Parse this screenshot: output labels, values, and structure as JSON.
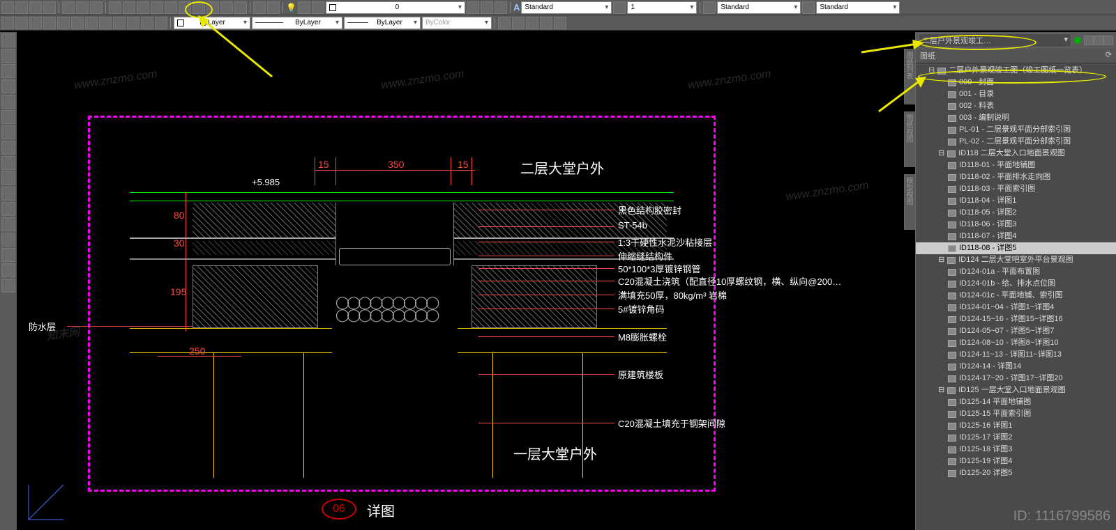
{
  "toolbar1": {
    "layer_dd": "0",
    "style1": "Standard",
    "style2": "1",
    "style3": "Standard",
    "style4": "Standard"
  },
  "toolbar2": {
    "bylayer1": "ByLayer",
    "bylayer2": "ByLayer",
    "bylayer3": "ByLayer",
    "bycolor": "ByColor"
  },
  "right_panel": {
    "header_dd": "二层户外景观竣工…",
    "section": "图纸",
    "root": "二层户外景观竣工图（竣工图纸一览表）",
    "items": [
      {
        "lv": 2,
        "label": "000 - 封面"
      },
      {
        "lv": 2,
        "label": "001 - 目录"
      },
      {
        "lv": 2,
        "label": "002 - 料表"
      },
      {
        "lv": 2,
        "label": "003 - 编制说明"
      },
      {
        "lv": 2,
        "label": "PL-01 - 二层景观平面分部索引图"
      },
      {
        "lv": 2,
        "label": "PL-02 - 二层景观平面分部索引图"
      },
      {
        "lv": 1,
        "label": "ID118 二层大堂入口地面景观图"
      },
      {
        "lv": 2,
        "label": "ID118-01 - 平面地铺图"
      },
      {
        "lv": 2,
        "label": "ID118-02 - 平面排水走向图"
      },
      {
        "lv": 2,
        "label": "ID118-03 - 平面索引图"
      },
      {
        "lv": 2,
        "label": "ID118-04 - 详图1"
      },
      {
        "lv": 2,
        "label": "ID118-05 - 详图2"
      },
      {
        "lv": 2,
        "label": "ID118-06 - 详图3"
      },
      {
        "lv": 2,
        "label": "ID118-07 - 详图4"
      },
      {
        "lv": 2,
        "label": "ID118-08 - 详图5",
        "sel": true
      },
      {
        "lv": 1,
        "label": "ID124 二层大堂吧室外平台景观图"
      },
      {
        "lv": 2,
        "label": "ID124-01a - 平面布置图"
      },
      {
        "lv": 2,
        "label": "ID124-01b - 给、排水点位图"
      },
      {
        "lv": 2,
        "label": "ID124-01c - 平面地铺、索引图"
      },
      {
        "lv": 2,
        "label": "ID124-01~04 - 详图1~详图4"
      },
      {
        "lv": 2,
        "label": "ID124-15~16 - 详图15~详图16"
      },
      {
        "lv": 2,
        "label": "ID124-05~07 - 详图5~详图7"
      },
      {
        "lv": 2,
        "label": "ID124-08~10 - 详图8~详图10"
      },
      {
        "lv": 2,
        "label": "ID124-11~13 - 详图11~详图13"
      },
      {
        "lv": 2,
        "label": "ID124-14 - 详图14"
      },
      {
        "lv": 2,
        "label": "ID124-17~20 - 详图17~详图20"
      },
      {
        "lv": 1,
        "label": "ID125 一层大堂入口地面景观图"
      },
      {
        "lv": 2,
        "label": "ID125-14 平面地铺图"
      },
      {
        "lv": 2,
        "label": "ID125-15 平面索引图"
      },
      {
        "lv": 2,
        "label": "ID125-16 详图1"
      },
      {
        "lv": 2,
        "label": "ID125-17 详图2"
      },
      {
        "lv": 2,
        "label": "ID125-18 详图3"
      },
      {
        "lv": 2,
        "label": "ID125-19 详图4"
      },
      {
        "lv": 2,
        "label": "ID125-20 详图5"
      }
    ]
  },
  "drawing": {
    "title_upper": "二层大堂户外",
    "title_lower": "一层大堂户外",
    "elev": "+5.985",
    "dims": {
      "d1": "15",
      "d2": "350",
      "d3": "15",
      "v1": "80",
      "v2": "30",
      "v3": "195",
      "h1": "250"
    },
    "left_anno": "防水层",
    "annos": [
      "黑色结构胶密封",
      "ST-54b",
      "1:3干硬性水泥沙粘接层",
      "伸缩缝结构件",
      "50*100*3厚镀锌钢管",
      "C20混凝土浇筑（配直径10厚螺纹钢，横、纵向@200…",
      "满填充50厚，80kg/m³ 岩棉",
      "5#镀锌角码",
      "M8膨胀螺栓",
      "原建筑楼板",
      "C20混凝土填充于钢架间隙"
    ],
    "detail_num": "06",
    "detail_label": "详图"
  },
  "watermark_id": "ID: 1116799586",
  "wm_text": "www.znzmo.com",
  "wm_brand": "知末网"
}
